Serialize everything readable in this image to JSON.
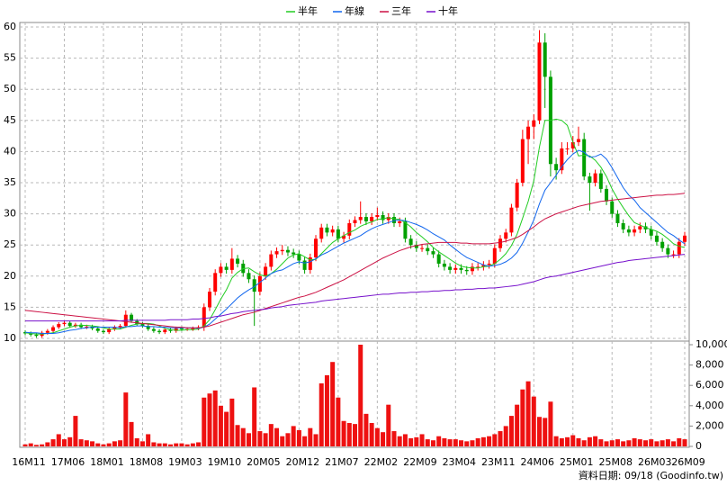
{
  "chart_data": {
    "type": "candlestick",
    "footnote": "資料日期: 09/18 (Goodinfo.tw)",
    "categories": [
      "16M11",
      null,
      null,
      null,
      null,
      null,
      null,
      "17M06",
      null,
      null,
      null,
      null,
      null,
      null,
      "18M01",
      null,
      null,
      null,
      null,
      null,
      null,
      "18M08",
      null,
      null,
      null,
      null,
      null,
      null,
      "19M03",
      null,
      null,
      null,
      null,
      null,
      null,
      "19M10",
      null,
      null,
      null,
      null,
      null,
      null,
      "20M05",
      null,
      null,
      null,
      null,
      null,
      null,
      "20M12",
      null,
      null,
      null,
      null,
      null,
      null,
      "21M07",
      null,
      null,
      null,
      null,
      null,
      null,
      "22M02",
      null,
      null,
      null,
      null,
      null,
      null,
      "22M09",
      null,
      null,
      null,
      null,
      null,
      null,
      "23M04",
      null,
      null,
      null,
      null,
      null,
      null,
      "23M11",
      null,
      null,
      null,
      null,
      null,
      null,
      "24M06",
      null,
      null,
      null,
      null,
      null,
      null,
      "25M01",
      null,
      null,
      null,
      null,
      null,
      null,
      "25M08",
      null,
      null,
      null,
      null,
      null,
      null,
      "26M03",
      null,
      null,
      null,
      null,
      null,
      "26M09"
    ],
    "open": [
      11.0,
      10.8,
      10.6,
      10.4,
      10.9,
      11.2,
      11.8,
      12.3,
      12.5,
      12.0,
      12.2,
      11.8,
      11.9,
      11.6,
      11.2,
      11.0,
      11.5,
      11.8,
      12.0,
      13.8,
      12.8,
      12.3,
      12.0,
      11.5,
      11.2,
      11.0,
      11.4,
      11.2,
      11.6,
      11.5,
      11.5,
      11.6,
      11.8,
      15.0,
      17.5,
      20.5,
      21.5,
      21.0,
      22.8,
      22.0,
      20.5,
      19.5,
      17.5,
      20.0,
      21.5,
      23.5,
      24.0,
      24.2,
      23.8,
      23.5,
      22.5,
      21.0,
      23.0,
      26.0,
      27.8,
      27.0,
      27.5,
      26.0,
      26.5,
      28.5,
      29.0,
      29.5,
      28.8,
      29.5,
      29.8,
      29.0,
      29.5,
      28.5,
      28.8,
      26.0,
      25.0,
      24.5,
      24.5,
      24.0,
      23.5,
      22.0,
      21.5,
      21.0,
      21.3,
      21.0,
      20.8,
      21.5,
      21.5,
      21.8,
      22.0,
      24.5,
      26.0,
      27.0,
      31.0,
      35.0,
      42.0,
      44.0,
      45.0,
      57.5,
      52.0,
      38.0,
      37.0,
      40.5,
      40.5,
      41.5,
      42.0,
      36.0,
      35.0,
      36.5,
      34.0,
      32.0,
      30.0,
      28.5,
      27.5,
      27.0,
      27.5,
      28.0,
      27.5,
      26.5,
      25.5,
      24.5,
      23.5,
      23.5,
      25.5
    ],
    "high": [
      11.3,
      11.1,
      10.9,
      11.2,
      11.5,
      12.1,
      12.6,
      12.8,
      12.8,
      12.5,
      12.5,
      12.2,
      12.2,
      11.9,
      11.5,
      11.8,
      12.1,
      12.3,
      14.5,
      14.1,
      13.1,
      12.6,
      12.3,
      11.8,
      11.5,
      11.7,
      11.7,
      11.9,
      11.9,
      11.8,
      11.9,
      12.1,
      15.6,
      18.1,
      21.1,
      22.1,
      22.1,
      24.5,
      23.4,
      22.6,
      21.1,
      20.1,
      20.6,
      22.1,
      24.1,
      24.6,
      25.0,
      24.8,
      24.4,
      24.1,
      23.1,
      23.6,
      26.6,
      28.4,
      28.4,
      28.1,
      28.1,
      27.1,
      29.1,
      29.6,
      32.0,
      30.1,
      30.1,
      31.0,
      30.4,
      30.1,
      30.1,
      29.4,
      29.4,
      26.6,
      25.6,
      25.1,
      25.1,
      24.6,
      24.1,
      22.6,
      22.1,
      21.9,
      21.9,
      21.6,
      22.1,
      22.1,
      22.4,
      22.6,
      25.1,
      26.6,
      27.6,
      31.6,
      35.6,
      43.5,
      45.0,
      46.0,
      59.5,
      59.0,
      53.0,
      39.0,
      41.5,
      41.5,
      42.5,
      44.0,
      43.0,
      36.6,
      37.1,
      37.1,
      34.6,
      32.6,
      30.6,
      29.1,
      28.1,
      28.1,
      28.6,
      28.6,
      28.1,
      27.1,
      26.1,
      25.1,
      24.1,
      26.1,
      27.1
    ],
    "low": [
      10.5,
      10.3,
      10.1,
      10.1,
      10.6,
      10.9,
      11.5,
      12.0,
      11.7,
      11.7,
      11.5,
      11.5,
      11.3,
      10.9,
      10.7,
      10.7,
      11.2,
      11.5,
      11.7,
      12.5,
      12.0,
      11.7,
      11.2,
      10.9,
      10.7,
      10.7,
      10.9,
      10.9,
      11.2,
      11.2,
      11.2,
      11.3,
      11.2,
      14.4,
      16.9,
      19.9,
      20.4,
      20.4,
      21.4,
      19.9,
      18.9,
      12.0,
      16.9,
      19.4,
      20.9,
      22.9,
      23.4,
      23.2,
      22.9,
      21.9,
      20.4,
      20.4,
      22.4,
      25.4,
      26.4,
      26.4,
      25.4,
      25.4,
      25.9,
      27.9,
      28.4,
      28.2,
      28.2,
      28.9,
      28.4,
      28.4,
      27.9,
      27.9,
      25.4,
      24.4,
      23.9,
      23.9,
      23.4,
      22.9,
      21.4,
      20.9,
      20.4,
      20.4,
      20.4,
      20.2,
      20.2,
      20.9,
      20.9,
      21.2,
      21.4,
      23.9,
      25.4,
      26.4,
      30.4,
      34.4,
      38.0,
      42.0,
      44.4,
      47.0,
      36.0,
      35.5,
      36.4,
      39.5,
      39.9,
      40.9,
      35.4,
      30.5,
      34.4,
      33.4,
      31.4,
      29.4,
      27.9,
      26.9,
      26.4,
      26.4,
      26.9,
      26.9,
      25.9,
      24.9,
      23.9,
      22.9,
      22.9,
      22.9,
      24.9
    ],
    "close": [
      10.8,
      10.6,
      10.4,
      10.9,
      11.2,
      11.8,
      12.3,
      12.5,
      12.0,
      12.2,
      11.8,
      11.9,
      11.6,
      11.2,
      11.0,
      11.5,
      11.8,
      12.0,
      13.8,
      12.8,
      12.3,
      12.0,
      11.5,
      11.2,
      11.0,
      11.4,
      11.2,
      11.6,
      11.5,
      11.5,
      11.6,
      11.8,
      15.0,
      17.5,
      20.5,
      21.5,
      21.0,
      22.8,
      22.0,
      20.5,
      19.5,
      17.5,
      20.0,
      21.5,
      23.5,
      24.0,
      24.2,
      23.8,
      23.5,
      22.5,
      21.0,
      23.0,
      26.0,
      27.8,
      27.0,
      27.5,
      26.0,
      26.5,
      28.5,
      29.0,
      29.5,
      28.8,
      29.5,
      29.8,
      29.0,
      29.5,
      28.5,
      28.8,
      26.0,
      25.0,
      24.5,
      24.5,
      24.0,
      23.5,
      22.0,
      21.5,
      21.0,
      21.3,
      21.0,
      20.8,
      21.5,
      21.5,
      21.8,
      22.0,
      24.5,
      26.0,
      27.0,
      31.0,
      35.0,
      42.0,
      44.0,
      45.0,
      57.5,
      52.0,
      38.0,
      37.0,
      40.5,
      40.5,
      41.5,
      42.0,
      36.0,
      35.0,
      36.5,
      34.0,
      32.0,
      30.0,
      28.5,
      27.5,
      27.0,
      27.5,
      28.0,
      27.5,
      26.5,
      25.5,
      24.5,
      23.5,
      23.5,
      25.5,
      26.5
    ],
    "volume": [
      200,
      300,
      150,
      200,
      400,
      700,
      1200,
      700,
      900,
      3000,
      700,
      600,
      500,
      300,
      200,
      300,
      500,
      600,
      5300,
      2400,
      800,
      500,
      1200,
      400,
      300,
      300,
      200,
      300,
      300,
      200,
      300,
      400,
      4800,
      5200,
      5500,
      4000,
      3400,
      4700,
      2100,
      1800,
      1300,
      5800,
      1500,
      1300,
      2200,
      1800,
      1000,
      1300,
      2000,
      1600,
      1000,
      1800,
      1200,
      6200,
      7000,
      8300,
      4800,
      2500,
      2300,
      2200,
      10000,
      3200,
      2300,
      1800,
      1400,
      4100,
      1500,
      1000,
      1200,
      800,
      900,
      1200,
      700,
      600,
      1000,
      800,
      700,
      700,
      600,
      500,
      600,
      800,
      900,
      1000,
      1200,
      1500,
      2000,
      3000,
      4100,
      5600,
      6400,
      4900,
      2900,
      2800,
      4400,
      1000,
      800,
      900,
      1100,
      800,
      600,
      900,
      1000,
      700,
      500,
      600,
      700,
      500,
      600,
      800,
      700,
      600,
      700,
      500,
      600,
      700,
      500,
      800,
      700
    ],
    "up_color": "#ff0000",
    "down_color": "#00a000",
    "volume_color": "#ee1111",
    "series": [
      {
        "name": "半年",
        "color": "#22cc22",
        "values": [
          10.9,
          10.8,
          10.7,
          10.7,
          10.8,
          10.9,
          11.2,
          11.5,
          11.8,
          12.0,
          12.1,
          12.1,
          12.0,
          11.9,
          11.7,
          11.5,
          11.5,
          11.5,
          11.8,
          12.1,
          12.3,
          12.4,
          12.4,
          12.3,
          12.0,
          11.6,
          11.4,
          11.3,
          11.3,
          11.4,
          11.4,
          11.5,
          12.0,
          13.0,
          14.6,
          16.3,
          17.8,
          19.7,
          20.6,
          21.2,
          21.3,
          20.7,
          20.2,
          20.0,
          20.4,
          21.1,
          22.0,
          22.9,
          23.4,
          23.6,
          23.1,
          22.6,
          22.7,
          23.6,
          24.5,
          25.4,
          26.0,
          26.5,
          27.0,
          27.4,
          28.0,
          28.4,
          28.7,
          29.1,
          29.2,
          29.4,
          29.2,
          29.1,
          28.6,
          27.9,
          27.0,
          26.3,
          25.5,
          24.6,
          23.9,
          23.3,
          22.7,
          22.1,
          21.6,
          21.4,
          21.3,
          21.3,
          21.5,
          21.6,
          22.0,
          22.7,
          23.6,
          24.9,
          26.7,
          29.3,
          32.0,
          35.3,
          40.7,
          45.0,
          45.0,
          45.2,
          45.0,
          44.2,
          41.5,
          39.3,
          39.4,
          39.3,
          38.6,
          37.5,
          36.0,
          34.0,
          32.4,
          31.0,
          29.7,
          28.6,
          28.2,
          27.8,
          27.5,
          27.2,
          26.7,
          26.0,
          25.2,
          24.8,
          24.6
        ]
      },
      {
        "name": "年線",
        "color": "#1166ee",
        "values": [
          11.0,
          10.9,
          10.9,
          10.8,
          10.8,
          10.8,
          10.9,
          11.1,
          11.3,
          11.4,
          11.6,
          11.7,
          11.8,
          11.8,
          11.8,
          11.8,
          11.8,
          11.7,
          11.9,
          11.9,
          12.0,
          12.0,
          11.9,
          11.9,
          11.8,
          11.8,
          11.7,
          11.7,
          11.7,
          11.7,
          11.7,
          11.6,
          11.8,
          12.3,
          13.1,
          13.9,
          14.7,
          15.6,
          16.5,
          17.2,
          17.8,
          18.3,
          19.0,
          19.7,
          20.4,
          20.8,
          21.0,
          21.5,
          22.0,
          22.3,
          22.1,
          22.3,
          22.8,
          23.4,
          23.8,
          24.3,
          24.8,
          25.3,
          25.7,
          26.1,
          26.5,
          27.1,
          27.6,
          28.0,
          28.3,
          28.6,
          28.9,
          29.0,
          28.9,
          28.6,
          28.3,
          27.9,
          27.4,
          26.8,
          26.3,
          25.8,
          25.0,
          24.3,
          23.6,
          23.0,
          22.6,
          22.2,
          21.8,
          21.6,
          21.7,
          21.9,
          22.3,
          22.9,
          23.8,
          25.3,
          27.1,
          29.0,
          31.6,
          33.8,
          35.0,
          36.2,
          37.6,
          38.7,
          39.6,
          40.2,
          39.9,
          39.1,
          39.2,
          39.6,
          38.8,
          37.4,
          35.8,
          34.2,
          33.0,
          32.2,
          31.0,
          30.2,
          29.4,
          28.6,
          27.8,
          27.0,
          26.5,
          25.8,
          25.2
        ]
      },
      {
        "name": "三年",
        "color": "#cc1144",
        "values": [
          14.5,
          14.4,
          14.3,
          14.2,
          14.1,
          14.0,
          13.9,
          13.8,
          13.7,
          13.6,
          13.5,
          13.4,
          13.3,
          13.2,
          13.1,
          13.0,
          12.9,
          12.8,
          12.7,
          12.6,
          12.5,
          12.4,
          12.3,
          12.2,
          12.1,
          12.0,
          11.9,
          11.8,
          11.8,
          11.7,
          11.7,
          11.7,
          11.8,
          12.0,
          12.3,
          12.6,
          12.9,
          13.2,
          13.5,
          13.8,
          14.0,
          14.2,
          14.5,
          14.8,
          15.1,
          15.4,
          15.7,
          16.0,
          16.3,
          16.6,
          16.8,
          17.1,
          17.4,
          17.8,
          18.2,
          18.6,
          19.0,
          19.4,
          19.9,
          20.4,
          20.9,
          21.4,
          21.9,
          22.4,
          22.9,
          23.3,
          23.7,
          24.1,
          24.4,
          24.7,
          24.9,
          25.1,
          25.2,
          25.3,
          25.4,
          25.4,
          25.4,
          25.4,
          25.3,
          25.3,
          25.2,
          25.2,
          25.2,
          25.2,
          25.3,
          25.4,
          25.6,
          25.9,
          26.2,
          26.7,
          27.3,
          27.9,
          28.6,
          29.2,
          29.6,
          30.0,
          30.3,
          30.6,
          30.9,
          31.2,
          31.4,
          31.6,
          31.8,
          32.0,
          32.1,
          32.2,
          32.3,
          32.4,
          32.5,
          32.6,
          32.7,
          32.8,
          32.9,
          33.0,
          33.0,
          33.1,
          33.1,
          33.2,
          33.3
        ]
      },
      {
        "name": "十年",
        "color": "#7711cc",
        "values": [
          12.8,
          12.8,
          12.8,
          12.8,
          12.8,
          12.8,
          12.8,
          12.8,
          12.8,
          12.8,
          12.8,
          12.8,
          12.8,
          12.8,
          12.8,
          12.8,
          12.8,
          12.8,
          12.9,
          12.9,
          12.9,
          12.9,
          12.9,
          12.9,
          12.9,
          12.9,
          13.0,
          13.0,
          13.0,
          13.0,
          13.1,
          13.1,
          13.2,
          13.3,
          13.5,
          13.6,
          13.8,
          14.0,
          14.1,
          14.3,
          14.4,
          14.5,
          14.6,
          14.7,
          14.9,
          15.0,
          15.1,
          15.3,
          15.4,
          15.5,
          15.6,
          15.7,
          15.8,
          16.0,
          16.1,
          16.2,
          16.3,
          16.4,
          16.5,
          16.6,
          16.7,
          16.8,
          16.9,
          17.0,
          17.1,
          17.1,
          17.2,
          17.3,
          17.3,
          17.4,
          17.4,
          17.5,
          17.5,
          17.6,
          17.6,
          17.7,
          17.7,
          17.8,
          17.8,
          17.9,
          17.9,
          18.0,
          18.0,
          18.1,
          18.1,
          18.2,
          18.3,
          18.4,
          18.5,
          18.7,
          18.9,
          19.1,
          19.4,
          19.7,
          19.9,
          20.0,
          20.2,
          20.4,
          20.6,
          20.8,
          21.0,
          21.2,
          21.4,
          21.6,
          21.8,
          22.0,
          22.2,
          22.3,
          22.5,
          22.6,
          22.7,
          22.8,
          22.9,
          23.0,
          23.1,
          23.2,
          23.3,
          23.4,
          23.5
        ]
      }
    ],
    "ylim": [
      10,
      60
    ],
    "yticks": [
      10,
      15,
      20,
      25,
      30,
      35,
      40,
      45,
      50,
      55,
      60
    ],
    "y2lim": [
      0,
      10000
    ],
    "y2ticks": [
      0,
      {
        "value": 2000,
        "label": "2,000"
      },
      {
        "value": 4000,
        "label": "4,000"
      },
      {
        "value": 6000,
        "label": "6,000"
      },
      {
        "value": 8000,
        "label": "8,000"
      },
      {
        "value": 10000,
        "label": "10,000"
      }
    ],
    "grid": true
  }
}
